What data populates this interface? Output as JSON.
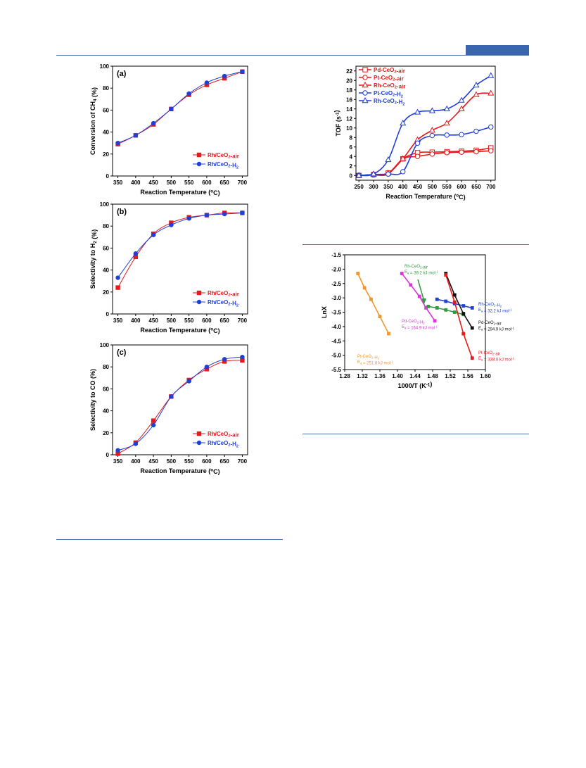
{
  "colors": {
    "red": "#e41a1c",
    "blue": "#1f3fd6",
    "green": "#2e9b3e",
    "black": "#111111",
    "magenta": "#e033e0",
    "orange": "#f0962e",
    "rule": "#4a6fa5"
  },
  "chart_data": [
    {
      "type": "line",
      "panel": "(a)",
      "xlabel": "Reaction Temperature (°C)",
      "ylabel": "Conversion of CH4 (%)",
      "xlim": [
        335,
        715
      ],
      "ylim": [
        0,
        100
      ],
      "xticks": [
        350,
        400,
        450,
        500,
        550,
        600,
        650,
        700
      ],
      "yticks": [
        0,
        20,
        40,
        60,
        80,
        100
      ],
      "x": [
        350,
        400,
        450,
        500,
        550,
        600,
        650,
        700
      ],
      "series": [
        {
          "name": "Rh/CeO2-air",
          "color": "#e41a1c",
          "marker": "square",
          "values": [
            29,
            37,
            47,
            61,
            74,
            83,
            89,
            95
          ]
        },
        {
          "name": "Rh/CeO2-H2",
          "color": "#1f3fd6",
          "marker": "circle",
          "values": [
            30,
            37,
            48,
            61,
            75,
            85,
            91,
            95
          ]
        }
      ],
      "legend": "bottom-right"
    },
    {
      "type": "line",
      "panel": "(b)",
      "xlabel": "Reaction Temperature (°C)",
      "ylabel": "Selectivity to H2 (%)",
      "xlim": [
        335,
        715
      ],
      "ylim": [
        0,
        100
      ],
      "xticks": [
        350,
        400,
        450,
        500,
        550,
        600,
        650,
        700
      ],
      "yticks": [
        0,
        20,
        40,
        60,
        80,
        100
      ],
      "x": [
        350,
        400,
        450,
        500,
        550,
        600,
        650,
        700
      ],
      "series": [
        {
          "name": "Rh/CeO2-air",
          "color": "#e41a1c",
          "marker": "square",
          "values": [
            24,
            52,
            73,
            83,
            88,
            90,
            92,
            92
          ]
        },
        {
          "name": "Rh/CeO2-H2",
          "color": "#1f3fd6",
          "marker": "circle",
          "values": [
            33,
            55,
            72,
            81,
            87,
            90,
            91,
            92
          ]
        }
      ],
      "legend": "bottom-right"
    },
    {
      "type": "line",
      "panel": "(c)",
      "xlabel": "Reaction Temperature (°C)",
      "ylabel": "Selectivity to CO (%)",
      "xlim": [
        335,
        715
      ],
      "ylim": [
        0,
        100
      ],
      "xticks": [
        350,
        400,
        450,
        500,
        550,
        600,
        650,
        700
      ],
      "yticks": [
        0,
        20,
        40,
        60,
        80,
        100
      ],
      "x": [
        350,
        400,
        450,
        500,
        550,
        600,
        650,
        700
      ],
      "series": [
        {
          "name": "Rh/CeO2-air",
          "color": "#e41a1c",
          "marker": "square",
          "values": [
            1,
            11,
            31,
            53,
            68,
            78,
            85,
            86
          ]
        },
        {
          "name": "Rh/CeO2-H2",
          "color": "#1f3fd6",
          "marker": "circle",
          "values": [
            4,
            10,
            27,
            53,
            67,
            80,
            87,
            89
          ]
        }
      ],
      "legend": "bottom-right"
    },
    {
      "type": "line",
      "xlabel": "Reaction Temperature (°C)",
      "ylabel": "TOF (s-1)",
      "xlim": [
        240,
        715
      ],
      "ylim": [
        -1,
        23
      ],
      "xticks": [
        250,
        300,
        350,
        400,
        450,
        500,
        550,
        600,
        650,
        700
      ],
      "yticks": [
        0,
        2,
        4,
        6,
        8,
        10,
        12,
        14,
        16,
        18,
        20,
        22
      ],
      "x": [
        250,
        300,
        350,
        400,
        450,
        500,
        550,
        600,
        650,
        700
      ],
      "series": [
        {
          "name": "Pd-CeO2-air",
          "color": "#e41a1c",
          "marker": "open-square",
          "values": [
            0,
            0.2,
            0.5,
            3.5,
            4.8,
            4.9,
            5.0,
            5.1,
            5.3,
            5.8
          ]
        },
        {
          "name": "Pt-CeO2-air",
          "color": "#e41a1c",
          "marker": "open-circle",
          "values": [
            0,
            0.1,
            0.3,
            3.5,
            4.0,
            4.5,
            4.8,
            4.9,
            5.0,
            5.2
          ]
        },
        {
          "name": "Rh-CeO2-air",
          "color": "#e41a1c",
          "marker": "open-triangle",
          "values": [
            0,
            0.2,
            0.5,
            3.5,
            7.5,
            9.5,
            11.0,
            14.0,
            17.0,
            17.3
          ]
        },
        {
          "name": "Pt-CeO2-H2",
          "color": "#1f3fd6",
          "marker": "open-circle",
          "values": [
            0,
            0.2,
            0.3,
            0.8,
            6.8,
            8.4,
            8.5,
            8.6,
            9.3,
            10.2
          ]
        },
        {
          "name": "Rh-CeO2-H2",
          "color": "#1f3fd6",
          "marker": "open-triangle",
          "values": [
            0,
            0.3,
            3.3,
            11.0,
            13.3,
            13.6,
            14.0,
            15.8,
            19.0,
            21.0
          ]
        }
      ],
      "legend": "top-left"
    },
    {
      "type": "scatter",
      "xlabel": "1000/T (K-1)",
      "ylabel": "LnX",
      "xlim": [
        1.28,
        1.6
      ],
      "ylim": [
        -5.5,
        -1.5
      ],
      "xticks": [
        1.28,
        1.32,
        1.36,
        1.4,
        1.44,
        1.48,
        1.52,
        1.56,
        1.6
      ],
      "yticks": [
        -1.5,
        -2.0,
        -2.5,
        -3.0,
        -3.5,
        -4.0,
        -4.5,
        -5.0,
        -5.5
      ],
      "series": [
        {
          "name": "Pt-CeO2-H2",
          "label": "Pt-CeO2-H2",
          "ea": "Ea = 251.8 kJ mol-1",
          "color": "#f0962e",
          "x": [
            1.31,
            1.325,
            1.34,
            1.36,
            1.38
          ],
          "y": [
            -2.15,
            -2.65,
            -3.05,
            -3.65,
            -4.25
          ]
        },
        {
          "name": "Pd-CeO2-H2",
          "label": "Pd-CeO2-H2",
          "ea": "Ea = 164.9 kJ mol-1",
          "color": "#e033e0",
          "x": [
            1.41,
            1.43,
            1.45,
            1.465,
            1.485
          ],
          "y": [
            -2.15,
            -2.55,
            -2.95,
            -3.35,
            -3.8
          ]
        },
        {
          "name": "Rh-CeO2-air",
          "label": "Rh-CeO2-air",
          "ea": "Ea = 39.2 kJ mol-1",
          "color": "#2e9b3e",
          "x": [
            1.47,
            1.49,
            1.51,
            1.53,
            1.55
          ],
          "y": [
            -3.3,
            -3.35,
            -3.42,
            -3.5,
            -3.58
          ]
        },
        {
          "name": "Rh-CeO2-H2",
          "label": "Rh-CeO2-H2",
          "ea": "Ea = 32.2 kJ mol-1",
          "color": "#1f3fd6",
          "x": [
            1.49,
            1.51,
            1.53,
            1.55,
            1.57
          ],
          "y": [
            -3.05,
            -3.12,
            -3.2,
            -3.28,
            -3.35
          ]
        },
        {
          "name": "Pd-CeO2-air",
          "label": "Pd-CeO2-air",
          "ea": "Ea = 294.9 kJ mol-1",
          "color": "#111111",
          "x": [
            1.51,
            1.53,
            1.55,
            1.57
          ],
          "y": [
            -2.15,
            -2.9,
            -3.55,
            -4.05
          ]
        },
        {
          "name": "Pt-CeO2-air",
          "label": "Pt-CeO2-air",
          "ea": "Ea = 338.0 kJ mol-1",
          "color": "#e41a1c",
          "x": [
            1.51,
            1.53,
            1.55,
            1.57
          ],
          "y": [
            -2.2,
            -3.15,
            -4.25,
            -5.1
          ]
        }
      ]
    }
  ]
}
